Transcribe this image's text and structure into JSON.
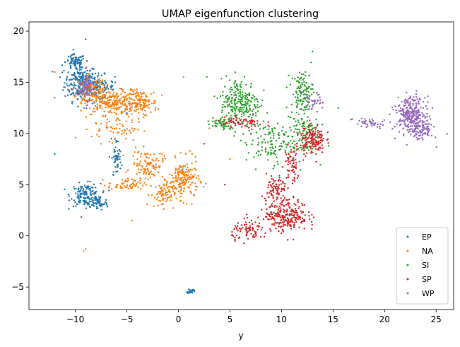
{
  "chart_data": {
    "type": "scatter",
    "title": "UMAP eigenfunction clustering",
    "xlabel": "y",
    "ylabel": "",
    "xlim": [
      -14.5,
      26.7
    ],
    "ylim": [
      -7.2,
      20.9
    ],
    "xticks": [
      -10,
      -5,
      0,
      5,
      10,
      15,
      20,
      25
    ],
    "yticks": [
      -5,
      0,
      5,
      10,
      15,
      20
    ],
    "grid": false,
    "legend_position": "bottom-right",
    "series": [
      {
        "name": "EP",
        "color": "#1f77b4",
        "blobs": [
          [
            -9.5,
            15.0,
            1.3,
            1.5,
            200
          ],
          [
            -8.0,
            14.5,
            1.5,
            1.0,
            150
          ],
          [
            -10.0,
            17.0,
            0.8,
            0.6,
            80
          ],
          [
            -9.0,
            4.0,
            1.2,
            0.9,
            150
          ],
          [
            -7.8,
            3.2,
            0.8,
            0.6,
            60
          ],
          [
            -6.0,
            7.5,
            0.4,
            1.6,
            50
          ],
          [
            1.2,
            -5.4,
            0.25,
            0.2,
            25
          ]
        ],
        "points": [
          [
            -9.0,
            19.2
          ],
          [
            -5.0,
            12.0
          ],
          [
            -8.0,
            11.0
          ],
          [
            -11.5,
            15.5
          ],
          [
            -6.5,
            14.5
          ],
          [
            -12.0,
            8.0
          ],
          [
            1.5,
            4.0
          ],
          [
            -6.5,
            9.5
          ]
        ]
      },
      {
        "name": "NA",
        "color": "#ff7f0e",
        "blobs": [
          [
            -6.5,
            13.0,
            2.2,
            1.0,
            250
          ],
          [
            -3.5,
            13.0,
            1.2,
            1.0,
            120
          ],
          [
            -8.5,
            14.5,
            1.2,
            0.9,
            100
          ],
          [
            0.5,
            5.5,
            1.2,
            1.6,
            180
          ],
          [
            -3.0,
            7.0,
            1.3,
            1.1,
            100
          ],
          [
            -1.5,
            4.0,
            1.0,
            1.0,
            80
          ],
          [
            -5.0,
            5.0,
            1.5,
            0.5,
            60
          ],
          [
            -6.0,
            10.5,
            2.0,
            1.0,
            60
          ]
        ],
        "points": [
          [
            -9.2,
            -1.5
          ],
          [
            -9.0,
            -1.3
          ],
          [
            0.5,
            15.5
          ],
          [
            -4.5,
            1.5
          ],
          [
            3.0,
            10.5
          ],
          [
            5.0,
            7.5
          ],
          [
            -12.0,
            16.0
          ],
          [
            -7.5,
            9.0
          ]
        ]
      },
      {
        "name": "SI",
        "color": "#2ca02c",
        "blobs": [
          [
            6.0,
            13.0,
            1.6,
            2.0,
            250
          ],
          [
            12.0,
            14.0,
            0.9,
            1.8,
            120
          ],
          [
            9.0,
            9.0,
            2.0,
            1.6,
            120
          ],
          [
            12.0,
            10.0,
            1.3,
            2.0,
            100
          ],
          [
            4.0,
            11.0,
            1.0,
            0.5,
            50
          ]
        ],
        "points": [
          [
            13.0,
            18.0
          ],
          [
            15.5,
            12.5
          ],
          [
            9.0,
            4.0
          ],
          [
            7.5,
            6.5
          ],
          [
            10.5,
            14.5
          ]
        ]
      },
      {
        "name": "SP",
        "color": "#d62728",
        "blobs": [
          [
            10.5,
            2.0,
            1.7,
            1.3,
            250
          ],
          [
            13.0,
            9.5,
            1.0,
            1.2,
            150
          ],
          [
            9.5,
            4.5,
            0.8,
            1.2,
            80
          ],
          [
            7.0,
            0.5,
            1.5,
            0.8,
            80
          ],
          [
            6.0,
            11.0,
            2.0,
            0.5,
            60
          ],
          [
            11.0,
            7.0,
            0.6,
            1.5,
            60
          ]
        ],
        "points": [
          [
            5.5,
            -0.5
          ],
          [
            2.5,
            9.0
          ],
          [
            4.5,
            5.0
          ],
          [
            14.0,
            13.0
          ],
          [
            11.5,
            9.0
          ]
        ]
      },
      {
        "name": "WP",
        "color": "#9467bd",
        "blobs": [
          [
            22.5,
            12.0,
            1.2,
            1.3,
            250
          ],
          [
            23.5,
            10.5,
            1.0,
            1.0,
            120
          ],
          [
            -9.0,
            14.5,
            0.6,
            1.2,
            80
          ],
          [
            18.5,
            11.0,
            1.3,
            0.5,
            40
          ],
          [
            13.0,
            13.0,
            0.7,
            0.7,
            30
          ]
        ],
        "points": [
          [
            -12.0,
            13.5
          ],
          [
            -11.0,
            14.5
          ],
          [
            21.0,
            9.5
          ],
          [
            12.0,
            14.0
          ]
        ]
      }
    ]
  }
}
